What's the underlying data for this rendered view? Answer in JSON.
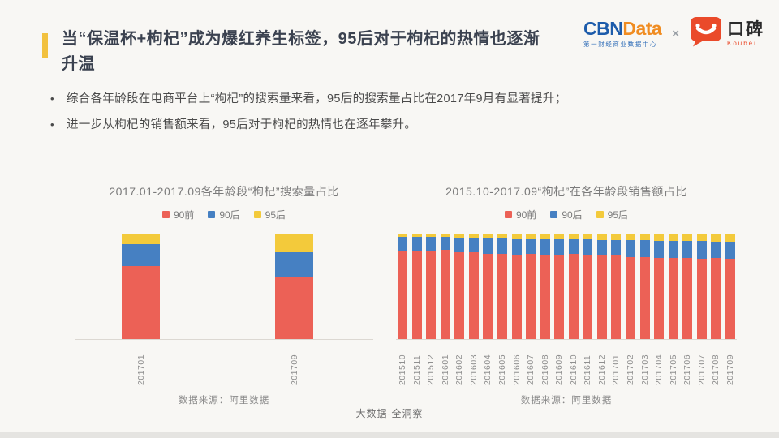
{
  "page": {
    "title": "当“保温杯+枸杞”成为爆红养生标签，95后对于枸杞的热情也逐渐升温",
    "accent_color": "#f2c13e",
    "background_color": "#f8f7f4"
  },
  "logos": {
    "cbndata": {
      "part1": "CBN",
      "part2": "Data",
      "subtitle": "第一财经商业数据中心",
      "blue": "#1d5cab",
      "orange": "#f08c21"
    },
    "separator": "×",
    "koubei": {
      "name": "口碑",
      "latin": "Koubei",
      "orange": "#ea4a2a"
    }
  },
  "bullets": [
    "综合各年龄段在电商平台上“枸杞”的搜索量来看，95后的搜索量占比在2017年9月有显著提升；",
    "进一步从枸杞的销售额来看，95后对于枸杞的热情也在逐年攀升。"
  ],
  "chart_data": [
    {
      "type": "bar",
      "subtype": "stacked-100-percent",
      "title": "2017.01-2017.09各年龄段“枸杞”搜索量占比",
      "categories": [
        "201701",
        "201709"
      ],
      "series": [
        {
          "name": "90前",
          "color": "#ec6156",
          "values": [
            69,
            59
          ]
        },
        {
          "name": "90后",
          "color": "#4680c2",
          "values": [
            21,
            23
          ]
        },
        {
          "name": "95后",
          "color": "#f3ca3b",
          "values": [
            10,
            18
          ]
        }
      ],
      "unit": "%",
      "ylim": [
        0,
        100
      ],
      "legend_position": "top",
      "grid": false,
      "source": "数据来源：阿里数据"
    },
    {
      "type": "bar",
      "subtype": "stacked-100-percent",
      "title": "2015.10-2017.09“枸杞”在各年龄段销售额占比",
      "categories": [
        "201510",
        "201511",
        "201512",
        "201601",
        "201602",
        "201603",
        "201604",
        "201605",
        "201606",
        "201607",
        "201608",
        "201609",
        "201610",
        "201611",
        "201612",
        "201701",
        "201702",
        "201703",
        "201704",
        "201705",
        "201706",
        "201707",
        "201708",
        "201709"
      ],
      "series": [
        {
          "name": "90前",
          "color": "#ec6156",
          "values": [
            84,
            84,
            83,
            85,
            82,
            82,
            81,
            81,
            80,
            81,
            80,
            80,
            81,
            80,
            79,
            80,
            78,
            78,
            77,
            77,
            77,
            76,
            77,
            76
          ]
        },
        {
          "name": "90后",
          "color": "#4680c2",
          "values": [
            13,
            13,
            14,
            12,
            14,
            14,
            15,
            15,
            15,
            14,
            15,
            15,
            14,
            15,
            15,
            14,
            16,
            16,
            16,
            16,
            16,
            17,
            15,
            16
          ]
        },
        {
          "name": "95后",
          "color": "#f3ca3b",
          "values": [
            3,
            3,
            3,
            3,
            4,
            4,
            4,
            4,
            5,
            5,
            5,
            5,
            5,
            5,
            6,
            6,
            6,
            6,
            7,
            7,
            7,
            7,
            8,
            8
          ]
        }
      ],
      "unit": "%",
      "ylim": [
        0,
        100
      ],
      "legend_position": "top",
      "grid": false,
      "source": "数据来源：阿里数据"
    }
  ],
  "footer": {
    "watermark": "大数据·全洞察"
  }
}
